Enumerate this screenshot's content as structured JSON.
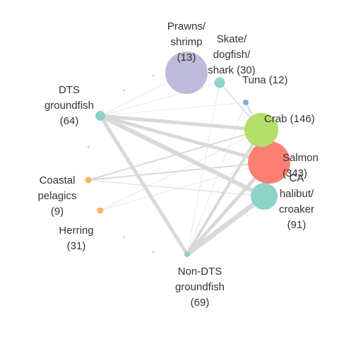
{
  "nodes": [
    {
      "id": "prawns",
      "lines": [
        "Prawns/",
        "shrimp",
        "(13)"
      ],
      "color": "#bebada"
    },
    {
      "id": "skate",
      "lines": [
        "Skate/",
        "dogfish/",
        "shark (30)"
      ],
      "color": "#8dd3c7"
    },
    {
      "id": "tuna",
      "lines": [
        "Tuna (12)"
      ],
      "color": "#80b1d3"
    },
    {
      "id": "dts",
      "lines": [
        "DTS",
        "groundfish",
        "(64)"
      ],
      "color": "#8dd3c7"
    },
    {
      "id": "crab",
      "lines": [
        "Crab (146)"
      ],
      "color": "#b3de69"
    },
    {
      "id": "salmon",
      "lines": [
        "Salmon",
        "(343)"
      ],
      "color": "#fb8072"
    },
    {
      "id": "ca_halibut",
      "lines": [
        "CA",
        "halibut/",
        "croaker",
        "(91)"
      ],
      "color": "#8dd3c7"
    },
    {
      "id": "coastal",
      "lines": [
        "Coastal",
        "pelagics",
        "(9)"
      ],
      "color": "#fdb462"
    },
    {
      "id": "herring",
      "lines": [
        "Herring",
        "(31)"
      ],
      "color": "#fdb462"
    },
    {
      "id": "nondts",
      "lines": [
        "Non-DTS",
        "groundfish",
        "(69)"
      ],
      "color": "#8dd3c7"
    }
  ],
  "edge_color": "#d9d9d9",
  "edges": [
    {
      "from": "dts",
      "to": "crab",
      "weight": 5
    },
    {
      "from": "dts",
      "to": "salmon",
      "weight": 5
    },
    {
      "from": "dts",
      "to": "ca_halibut",
      "weight": 6
    },
    {
      "from": "dts",
      "to": "nondts",
      "weight": 5
    },
    {
      "from": "dts",
      "to": "skate",
      "weight": 0.6
    },
    {
      "from": "dts",
      "to": "prawns",
      "weight": 0.6
    },
    {
      "from": "dts",
      "to": "tuna",
      "weight": 0.6
    },
    {
      "from": "nondts",
      "to": "crab",
      "weight": 4
    },
    {
      "from": "nondts",
      "to": "salmon",
      "weight": 5
    },
    {
      "from": "nondts",
      "to": "ca_halibut",
      "weight": 7
    },
    {
      "from": "nondts",
      "to": "skate",
      "weight": 0.6
    },
    {
      "from": "nondts",
      "to": "tuna",
      "weight": 0.6
    },
    {
      "from": "coastal",
      "to": "crab",
      "weight": 2
    },
    {
      "from": "coastal",
      "to": "salmon",
      "weight": 2
    },
    {
      "from": "coastal",
      "to": "ca_halibut",
      "weight": 1
    },
    {
      "from": "herring",
      "to": "crab",
      "weight": 0.6
    },
    {
      "from": "herring",
      "to": "salmon",
      "weight": 0.6
    },
    {
      "from": "crab",
      "to": "salmon",
      "weight": 7
    },
    {
      "from": "crab",
      "to": "ca_halibut",
      "weight": 3
    },
    {
      "from": "salmon",
      "to": "ca_halibut",
      "weight": 3
    },
    {
      "from": "crab",
      "to": "tuna",
      "weight": 1.5
    },
    {
      "from": "skate",
      "to": "crab",
      "weight": 1.5
    },
    {
      "from": "tuna",
      "to": "salmon",
      "weight": 1
    }
  ]
}
